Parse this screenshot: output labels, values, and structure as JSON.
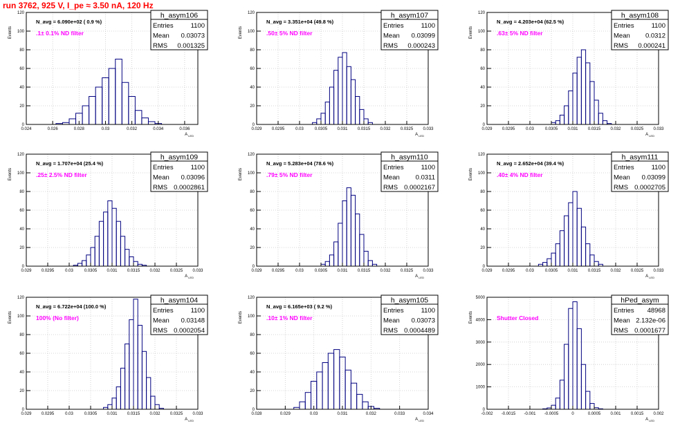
{
  "header": {
    "run_title": "run 3762,   925 V, I_pe ≈ 3.50 nA, 120 Hz",
    "run_title_color": "#ff0000"
  },
  "labels": {
    "entries": "Entries",
    "mean": "Mean",
    "rms": "RMS"
  },
  "colors": {
    "histogram": "#000080",
    "filter_label": "#ff00ff",
    "grid": "#c8c8c8",
    "frame": "#000000"
  },
  "chart_data": [
    {
      "type": "bar",
      "name": "h_asym106",
      "ylabel": "Events",
      "xlabel": "A_LED",
      "navg": "N_avg = 6.090e+02 ( 0.9 %)",
      "filter": ".1± 0.1% ND filter",
      "stats": {
        "entries": "1100",
        "mean": "0.03073",
        "rms": "0.001325"
      },
      "xlim": [
        0.024,
        0.037
      ],
      "ylim": [
        0,
        120
      ],
      "xticks": [
        "0.024",
        "0.026",
        "0.028",
        "0.03",
        "0.032",
        "0.034",
        "0.036"
      ],
      "xtick_values": [
        0.024,
        0.026,
        0.028,
        0.03,
        0.032,
        0.034,
        0.036
      ],
      "yticks": [
        0,
        20,
        40,
        60,
        80,
        100,
        120
      ],
      "centers": [
        0.0265,
        0.027,
        0.0275,
        0.028,
        0.0285,
        0.029,
        0.0295,
        0.03,
        0.0305,
        0.031,
        0.0315,
        0.032,
        0.0325,
        0.033,
        0.0335,
        0.034
      ],
      "values": [
        1,
        2,
        6,
        12,
        20,
        30,
        40,
        50,
        60,
        70,
        45,
        30,
        15,
        7,
        3,
        1
      ]
    },
    {
      "type": "bar",
      "name": "h_asym107",
      "ylabel": "Events",
      "xlabel": "A_LED",
      "navg": "N_avg = 3.351e+04 (49.8 %)",
      "filter": ".50± 5% ND filter",
      "stats": {
        "entries": "1100",
        "mean": "0.03099",
        "rms": "0.000243"
      },
      "xlim": [
        0.029,
        0.033
      ],
      "ylim": [
        0,
        120
      ],
      "xticks": [
        "0.029",
        "0.0295",
        "0.03",
        "0.0305",
        "0.031",
        "0.0315",
        "0.032",
        "0.0325",
        "0.033"
      ],
      "xtick_values": [
        0.029,
        0.0295,
        0.03,
        0.0305,
        0.031,
        0.0315,
        0.032,
        0.0325,
        0.033
      ],
      "yticks": [
        0,
        20,
        40,
        60,
        80,
        100,
        120
      ],
      "centers": [
        0.03035,
        0.03045,
        0.03055,
        0.03065,
        0.03075,
        0.03085,
        0.03095,
        0.03105,
        0.03115,
        0.03125,
        0.03135,
        0.03145,
        0.03155,
        0.03165
      ],
      "values": [
        2,
        6,
        12,
        24,
        40,
        58,
        72,
        77,
        62,
        48,
        30,
        16,
        6,
        2
      ]
    },
    {
      "type": "bar",
      "name": "h_asym108",
      "ylabel": "Events",
      "xlabel": "A_LED",
      "navg": "N_avg = 4.203e+04 (62.5 %)",
      "filter": ".63± 5% ND filter",
      "stats": {
        "entries": "1100",
        "mean": "0.0312",
        "rms": "0.000241"
      },
      "xlim": [
        0.029,
        0.033
      ],
      "ylim": [
        0,
        120
      ],
      "xticks": [
        "0.029",
        "0.0295",
        "0.03",
        "0.0305",
        "0.031",
        "0.0315",
        "0.032",
        "0.0325",
        "0.033"
      ],
      "xtick_values": [
        0.029,
        0.0295,
        0.03,
        0.0305,
        0.031,
        0.0315,
        0.032,
        0.0325,
        0.033
      ],
      "yticks": [
        0,
        20,
        40,
        60,
        80,
        100,
        120
      ],
      "centers": [
        0.03055,
        0.03065,
        0.03075,
        0.03085,
        0.03095,
        0.03105,
        0.03115,
        0.03125,
        0.03135,
        0.03145,
        0.03155,
        0.03165,
        0.03175,
        0.03185
      ],
      "values": [
        2,
        4,
        10,
        20,
        36,
        55,
        72,
        80,
        66,
        46,
        26,
        12,
        4,
        1
      ]
    },
    {
      "type": "bar",
      "name": "h_asym109",
      "ylabel": "Events",
      "xlabel": "A_LED",
      "navg": "N_avg = 1.707e+04 (25.4 %)",
      "filter": ".25± 2.5% ND filter",
      "stats": {
        "entries": "1100",
        "mean": "0.03096",
        "rms": "0.0002861"
      },
      "xlim": [
        0.029,
        0.033
      ],
      "ylim": [
        0,
        120
      ],
      "xticks": [
        "0.029",
        "0.0295",
        "0.03",
        "0.0305",
        "0.031",
        "0.0315",
        "0.032",
        "0.0325",
        "0.033"
      ],
      "xtick_values": [
        0.029,
        0.0295,
        0.03,
        0.0305,
        0.031,
        0.0315,
        0.032,
        0.0325,
        0.033
      ],
      "yticks": [
        0,
        20,
        40,
        60,
        80,
        100,
        120
      ],
      "centers": [
        0.03015,
        0.03025,
        0.03035,
        0.03045,
        0.03055,
        0.03065,
        0.03075,
        0.03085,
        0.03095,
        0.03105,
        0.03115,
        0.03125,
        0.03135,
        0.03145,
        0.03155,
        0.03165,
        0.03175
      ],
      "values": [
        1,
        3,
        6,
        12,
        20,
        32,
        48,
        58,
        70,
        62,
        48,
        32,
        18,
        10,
        5,
        2,
        1
      ]
    },
    {
      "type": "bar",
      "name": "h_asym110",
      "ylabel": "Events",
      "xlabel": "A_LED",
      "navg": "N_avg = 5.283e+04 (78.6 %)",
      "filter": ".79± 5% ND filter",
      "stats": {
        "entries": "1100",
        "mean": "0.0311",
        "rms": "0.0002167"
      },
      "xlim": [
        0.029,
        0.033
      ],
      "ylim": [
        0,
        120
      ],
      "xticks": [
        "0.029",
        "0.0295",
        "0.03",
        "0.0305",
        "0.031",
        "0.0315",
        "0.032",
        "0.0325",
        "0.033"
      ],
      "xtick_values": [
        0.029,
        0.0295,
        0.03,
        0.0305,
        0.031,
        0.0315,
        0.032,
        0.0325,
        0.033
      ],
      "yticks": [
        0,
        20,
        40,
        60,
        80,
        100,
        120
      ],
      "centers": [
        0.03055,
        0.03065,
        0.03075,
        0.03085,
        0.03095,
        0.03105,
        0.03115,
        0.03125,
        0.03135,
        0.03145,
        0.03155,
        0.03165,
        0.03175
      ],
      "values": [
        2,
        5,
        12,
        26,
        46,
        70,
        84,
        76,
        56,
        34,
        16,
        6,
        2
      ]
    },
    {
      "type": "bar",
      "name": "h_asym111",
      "ylabel": "Events",
      "xlabel": "A_LED",
      "navg": "N_avg = 2.652e+04 (39.4 %)",
      "filter": ".40± 4% ND filter",
      "stats": {
        "entries": "1100",
        "mean": "0.03099",
        "rms": "0.0002705"
      },
      "xlim": [
        0.029,
        0.033
      ],
      "ylim": [
        0,
        120
      ],
      "xticks": [
        "0.029",
        "0.0295",
        "0.03",
        "0.0305",
        "0.031",
        "0.0315",
        "0.032",
        "0.0325",
        "0.033"
      ],
      "xtick_values": [
        0.029,
        0.0295,
        0.03,
        0.0305,
        0.031,
        0.0315,
        0.032,
        0.0325,
        0.033
      ],
      "yticks": [
        0,
        20,
        40,
        60,
        80,
        100,
        120
      ],
      "centers": [
        0.03025,
        0.03035,
        0.03045,
        0.03055,
        0.03065,
        0.03075,
        0.03085,
        0.03095,
        0.03105,
        0.03115,
        0.03125,
        0.03135,
        0.03145,
        0.03155,
        0.03165
      ],
      "values": [
        2,
        4,
        8,
        14,
        24,
        38,
        54,
        68,
        80,
        62,
        42,
        24,
        12,
        5,
        2
      ]
    },
    {
      "type": "bar",
      "name": "h_asym104",
      "ylabel": "Events",
      "xlabel": "A_LED",
      "navg": "N_avg = 6.722e+04 (100.0 %)",
      "filter": "100% (No filter)",
      "stats": {
        "entries": "1100",
        "mean": "0.03148",
        "rms": "0.0002054"
      },
      "xlim": [
        0.029,
        0.033
      ],
      "ylim": [
        0,
        120
      ],
      "xticks": [
        "0.029",
        "0.0295",
        "0.03",
        "0.0305",
        "0.031",
        "0.0315",
        "0.032",
        "0.0325",
        "0.033"
      ],
      "xtick_values": [
        0.029,
        0.0295,
        0.03,
        0.0305,
        0.031,
        0.0315,
        0.032,
        0.0325,
        0.033
      ],
      "yticks": [
        0,
        20,
        40,
        60,
        80,
        100,
        120
      ],
      "centers": [
        0.03085,
        0.03095,
        0.03105,
        0.03115,
        0.03125,
        0.03135,
        0.03145,
        0.03155,
        0.03165,
        0.03175,
        0.03185,
        0.03195,
        0.03205,
        0.03215
      ],
      "values": [
        2,
        5,
        12,
        24,
        44,
        70,
        96,
        118,
        90,
        62,
        34,
        14,
        5,
        1
      ]
    },
    {
      "type": "bar",
      "name": "h_asym105",
      "ylabel": "Events",
      "xlabel": "A_LED",
      "navg": "N_avg = 6.165e+03 ( 9.2 %)",
      "filter": ".10± 1% ND filter",
      "stats": {
        "entries": "1100",
        "mean": "0.03073",
        "rms": "0.0004489"
      },
      "xlim": [
        0.028,
        0.034
      ],
      "ylim": [
        0,
        120
      ],
      "xticks": [
        "0.028",
        "0.029",
        "0.03",
        "0.031",
        "0.032",
        "0.033",
        "0.034"
      ],
      "xtick_values": [
        0.028,
        0.029,
        0.03,
        0.031,
        0.032,
        0.033,
        0.034
      ],
      "yticks": [
        0,
        20,
        40,
        60,
        80,
        100,
        120
      ],
      "centers": [
        0.0294,
        0.0296,
        0.0298,
        0.03,
        0.0302,
        0.0304,
        0.0306,
        0.0308,
        0.031,
        0.0312,
        0.0314,
        0.0316,
        0.0318,
        0.032,
        0.0322
      ],
      "values": [
        2,
        8,
        18,
        30,
        40,
        50,
        60,
        64,
        56,
        42,
        28,
        16,
        8,
        3,
        1
      ]
    },
    {
      "type": "bar",
      "name": "hPed_asym",
      "ylabel": "Events",
      "xlabel": "A_LED",
      "navg": "",
      "filter": "Shutter Closed",
      "stats": {
        "entries": "48968",
        "mean": "2.132e-06",
        "rms": "0.0001677"
      },
      "xlim": [
        -0.002,
        0.002
      ],
      "ylim": [
        0,
        5000
      ],
      "xticks": [
        "-0.002",
        "-0.0015",
        "-0.001",
        "-0.0005",
        "0",
        "0.0005",
        "0.001",
        "0.0015",
        "0.002"
      ],
      "xtick_values": [
        -0.002,
        -0.0015,
        -0.001,
        -0.0005,
        0,
        0.0005,
        0.001,
        0.0015,
        0.002
      ],
      "yticks": [
        0,
        1000,
        2000,
        3000,
        4000,
        5000
      ],
      "centers": [
        -0.00065,
        -0.00055,
        -0.00045,
        -0.00035,
        -0.00025,
        -0.00015,
        -5e-05,
        5e-05,
        0.00015,
        0.00025,
        0.00035,
        0.00045,
        0.00055,
        0.00065
      ],
      "values": [
        20,
        60,
        180,
        500,
        1300,
        2900,
        4500,
        4800,
        3600,
        2000,
        800,
        260,
        70,
        20
      ]
    }
  ]
}
